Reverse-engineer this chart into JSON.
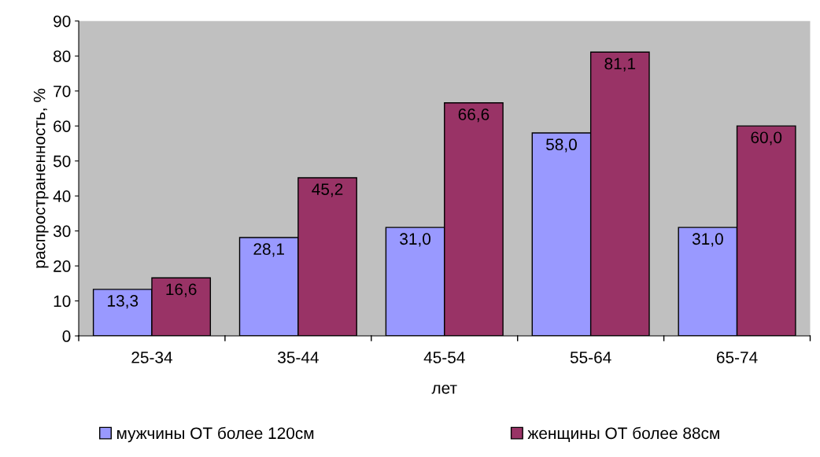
{
  "chart_data": {
    "type": "bar",
    "xlabel": "лет",
    "ylabel": "распространенность, %",
    "categories": [
      "25-34",
      "35-44",
      "45-54",
      "55-64",
      "65-74"
    ],
    "series": [
      {
        "name": "мужчины ОТ более 120см",
        "color": "#9999ff",
        "values": [
          13.3,
          28.1,
          31.0,
          58.0,
          31.0
        ],
        "value_labels": [
          "13,3",
          "28,1",
          "31,0",
          "58,0",
          "31,0"
        ]
      },
      {
        "name": "женщины ОТ более 88см",
        "color": "#993366",
        "values": [
          16.6,
          45.2,
          66.6,
          81.1,
          60.0
        ],
        "value_labels": [
          "16,6",
          "45,2",
          "66,6",
          "81,1",
          "60,0"
        ]
      }
    ],
    "ylim": [
      0,
      90
    ],
    "yticks": [
      0,
      10,
      20,
      30,
      40,
      50,
      60,
      70,
      80,
      90
    ],
    "grid": false,
    "legend": "bottom"
  }
}
